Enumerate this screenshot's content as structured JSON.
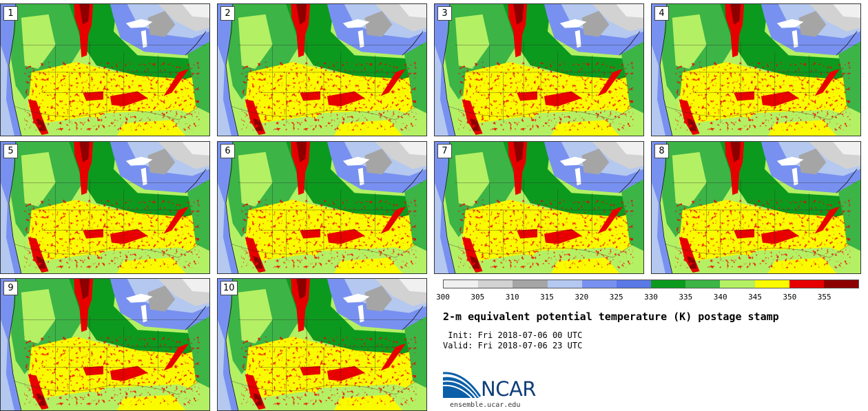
{
  "panels": [
    "1",
    "2",
    "3",
    "4",
    "5",
    "6",
    "7",
    "8",
    "9",
    "10"
  ],
  "colorbar": {
    "ticks": [
      "300",
      "305",
      "310",
      "315",
      "320",
      "325",
      "330",
      "335",
      "340",
      "345",
      "350",
      "355"
    ],
    "colors": [
      "#f0f0f0",
      "#d2d2d2",
      "#a5a5a5",
      "#b4c8f0",
      "#7891f0",
      "#5a78e6",
      "#0c9a1e",
      "#3cb446",
      "#b4f064",
      "#fafa00",
      "#e60000",
      "#8c0000"
    ]
  },
  "title": "2-m equivalent potential temperature (K) postage stamp",
  "init": " Init: Fri 2018-07-06 00 UTC",
  "valid": "Valid: Fri 2018-07-06 23 UTC",
  "logo": {
    "name": "NCAR",
    "url": "ensemble.ucar.edu"
  }
}
